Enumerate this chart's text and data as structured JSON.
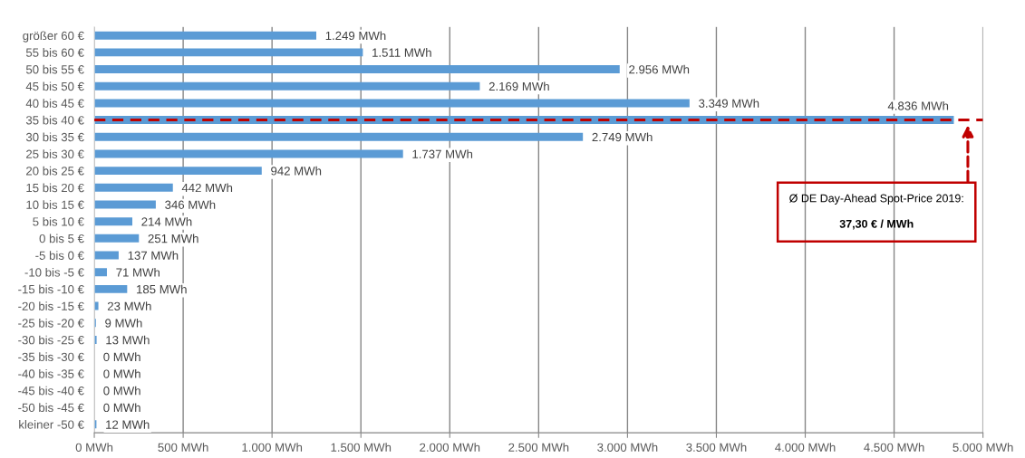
{
  "chart_data": {
    "type": "bar",
    "orientation": "horizontal",
    "categories": [
      "größer 60 €",
      "55 bis 60 €",
      "50 bis 55 €",
      "45 bis 50 €",
      "40 bis 45 €",
      "35 bis 40 €",
      "30 bis 35 €",
      "25 bis 30 €",
      "20 bis 25 €",
      "15 bis 20 €",
      "10 bis 15 €",
      "5 bis 10 €",
      "0 bis 5 €",
      "-5 bis 0 €",
      "-10 bis -5 €",
      "-15 bis -10 €",
      "-20 bis -15 €",
      "-25 bis -20 €",
      "-30 bis -25 €",
      "-35 bis -30 €",
      "-40 bis -35 €",
      "-45 bis -40 €",
      "-50 bis -45 €",
      "kleiner -50 €"
    ],
    "values": [
      1249,
      1511,
      2956,
      2169,
      3349,
      4836,
      2749,
      1737,
      942,
      442,
      346,
      214,
      251,
      137,
      71,
      185,
      23,
      9,
      13,
      0,
      0,
      0,
      0,
      12
    ],
    "value_labels": [
      "1.249 MWh",
      "1.511 MWh",
      "2.956 MWh",
      "2.169 MWh",
      "3.349 MWh",
      "4.836 MWh",
      "2.749 MWh",
      "1.737 MWh",
      "942 MWh",
      "442 MWh",
      "346 MWh",
      "214 MWh",
      "251 MWh",
      "137 MWh",
      "71 MWh",
      "185 MWh",
      "23 MWh",
      "9 MWh",
      "13 MWh",
      "0 MWh",
      "0 MWh",
      "0 MWh",
      "0 MWh",
      "12 MWh"
    ],
    "color": "#5b9bd5",
    "xlim": [
      0,
      5000
    ],
    "xticks": [
      {
        "value": 0,
        "label": "0 MWh"
      },
      {
        "value": 500,
        "label": "500 MWh"
      },
      {
        "value": 1000,
        "label": "1.000 MWh"
      },
      {
        "value": 1500,
        "label": "1.500 MWh"
      },
      {
        "value": 2000,
        "label": "2.000 MWh"
      },
      {
        "value": 2500,
        "label": "2.500 MWh"
      },
      {
        "value": 3000,
        "label": "3.000 MWh"
      },
      {
        "value": 3500,
        "label": "3.500 MWh"
      },
      {
        "value": 4000,
        "label": "4.000 MWh"
      },
      {
        "value": 4500,
        "label": "4.500 MWh"
      },
      {
        "value": 5000,
        "label": "5.000 MWh"
      }
    ],
    "grid": "x",
    "ref_lines": [
      {
        "axis": "y",
        "value": "35 bis 40 €",
        "label": "Ø DE Day-Ahead Spot-Price 2019:\n37,30 € / MWh",
        "color": "#c00000",
        "line_style": "dashed"
      }
    ]
  }
}
